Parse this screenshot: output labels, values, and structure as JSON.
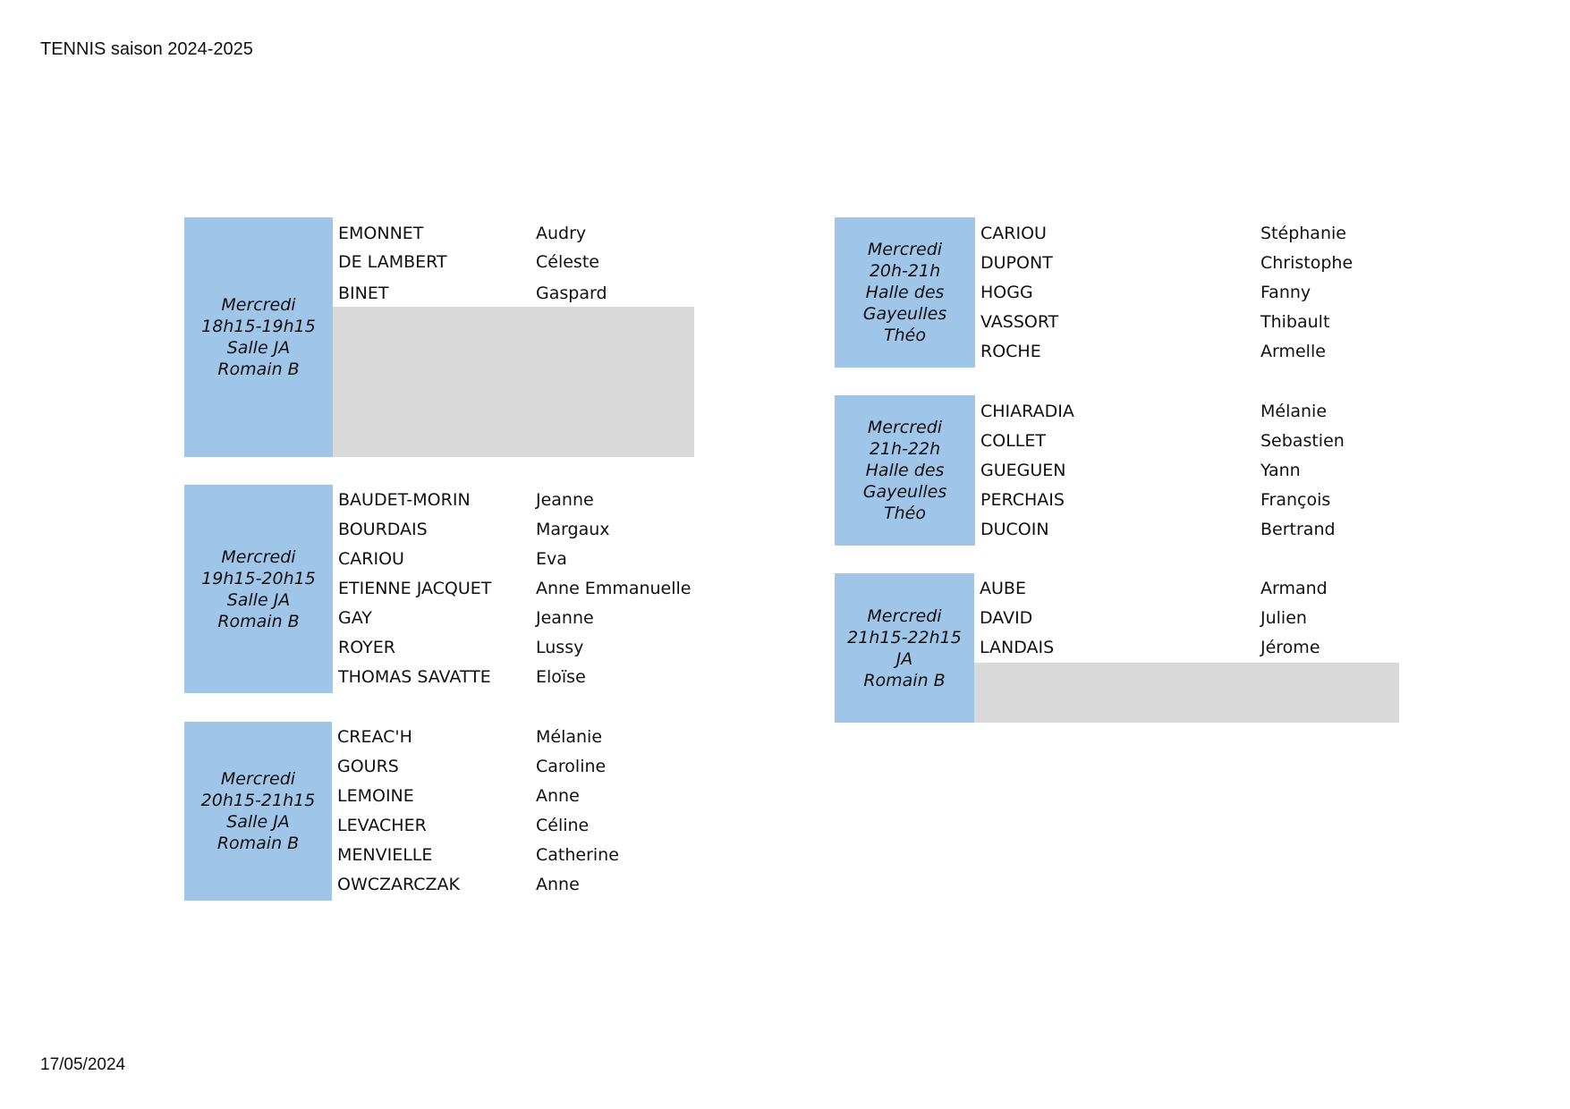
{
  "header": {
    "title": "TENNIS saison 2024-2025"
  },
  "footer": {
    "date": "17/05/2024"
  },
  "groups": [
    {
      "label": [
        "Mercredi",
        "18h15-19h15",
        "Salle JA",
        "Romain B"
      ],
      "members": [
        {
          "last": "EMONNET",
          "first": "Audry"
        },
        {
          "last": "DE LAMBERT",
          "first": "Céleste"
        },
        {
          "last": "BINET",
          "first": "Gaspard"
        }
      ]
    },
    {
      "label": [
        "Mercredi",
        "19h15-20h15",
        "Salle JA",
        "Romain B"
      ],
      "members": [
        {
          "last": "BAUDET-MORIN",
          "first": "Jeanne"
        },
        {
          "last": "BOURDAIS",
          "first": "Margaux"
        },
        {
          "last": "CARIOU",
          "first": "Eva"
        },
        {
          "last": "ETIENNE JACQUET",
          "first": "Anne Emmanuelle"
        },
        {
          "last": "GAY",
          "first": "Jeanne"
        },
        {
          "last": "ROYER",
          "first": "Lussy"
        },
        {
          "last": "THOMAS SAVATTE",
          "first": "Eloïse"
        }
      ]
    },
    {
      "label": [
        "Mercredi",
        "20h15-21h15",
        "Salle JA",
        "Romain B"
      ],
      "members": [
        {
          "last": "CREAC'H",
          "first": "Mélanie"
        },
        {
          "last": "GOURS",
          "first": "Caroline"
        },
        {
          "last": "LEMOINE",
          "first": "Anne"
        },
        {
          "last": "LEVACHER",
          "first": "Céline"
        },
        {
          "last": "MENVIELLE",
          "first": "Catherine"
        },
        {
          "last": "OWCZARCZAK",
          "first": "Anne"
        }
      ]
    },
    {
      "label": [
        "Mercredi",
        "20h-21h",
        "Halle des",
        "Gayeulles",
        "Théo"
      ],
      "members": [
        {
          "last": "CARIOU",
          "first": "Stéphanie"
        },
        {
          "last": "DUPONT",
          "first": "Christophe"
        },
        {
          "last": "HOGG",
          "first": "Fanny"
        },
        {
          "last": "VASSORT",
          "first": "Thibault"
        },
        {
          "last": "ROCHE",
          "first": "Armelle"
        }
      ]
    },
    {
      "label": [
        "Mercredi",
        "21h-22h",
        "Halle des",
        "Gayeulles",
        "Théo"
      ],
      "members": [
        {
          "last": "CHIARADIA",
          "first": "Mélanie"
        },
        {
          "last": "COLLET",
          "first": "Sebastien"
        },
        {
          "last": "GUEGUEN",
          "first": "Yann"
        },
        {
          "last": "PERCHAIS",
          "first": "François"
        },
        {
          "last": "DUCOIN",
          "first": "Bertrand"
        }
      ]
    },
    {
      "label": [
        "Mercredi",
        "21h15-22h15",
        "JA",
        "Romain B"
      ],
      "members": [
        {
          "last": "AUBE",
          "first": "Armand"
        },
        {
          "last": "DAVID",
          "first": "Julien"
        },
        {
          "last": "LANDAIS",
          "first": "Jérome"
        }
      ]
    }
  ]
}
